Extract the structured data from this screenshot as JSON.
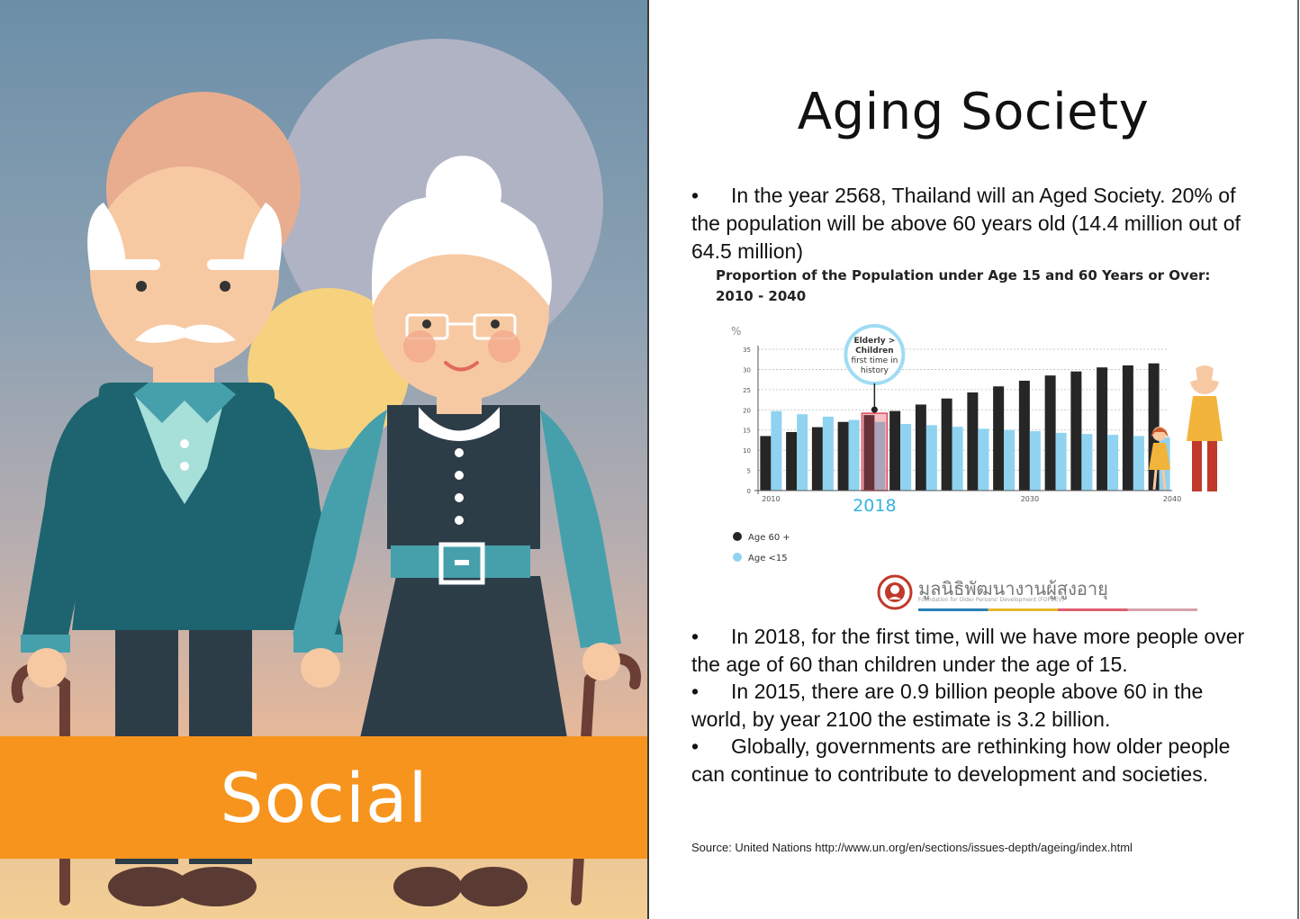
{
  "left_panel": {
    "label": "Social",
    "colors": {
      "band": "#f7941d",
      "sky_top": "#6b8fa8",
      "sky_bottom": "#f2cf94"
    }
  },
  "right_panel": {
    "title": "Aging Society",
    "bullets": [
      {
        "symbol": "•",
        "text": "In the year 2568, Thailand will an Aged Society. 20% of the population will be above 60 years old (14.4 million out of 64.5 million)"
      },
      {
        "symbol": "•",
        "text": "In 2018, for the first time, will we have more people over the age of 60 than children under the age of 15."
      },
      {
        "symbol": "•",
        "text": "In 2015, there are 0.9 billion people above 60 in the world, by year 2100 the estimate is 3.2 billion."
      },
      {
        "symbol": "•",
        "text": "Globally, governments are rethinking how older people can continue to contribute to development and societies."
      }
    ],
    "chart_title_line1": "Proportion of the Population under Age 15 and 60 Years or Over:",
    "chart_title_line2": "2010 - 2040",
    "logo": {
      "text": "มูลนิธิพัฒนางานผู้สูงอายุ",
      "subtext": "Foundation for Older Persons' Development (FOPDEV)"
    },
    "source": "Source: United Nations http://www.un.org/en/sections/issues-depth/ageing/index.html"
  },
  "chart_data": {
    "type": "bar",
    "title": "Proportion of the Population under Age 15 and 60 Years or Over: 2010 - 2040",
    "ylabel": "%",
    "ylim": [
      0,
      35
    ],
    "yticks": [
      0,
      5,
      10,
      15,
      20,
      25,
      30,
      35
    ],
    "xticks": [
      "2010",
      "2030",
      "2040"
    ],
    "highlight_label": "2018",
    "callout": "Elderly > Children first time in history",
    "grid": true,
    "legend_position": "bottom-left",
    "colors": {
      "Age 60 +": "#262626",
      "Age <15": "#8fd3f0",
      "highlight": "#e04a5a"
    },
    "categories": [
      "2010",
      "2012",
      "2014",
      "2016",
      "2018",
      "2020",
      "2022",
      "2024",
      "2026",
      "2028",
      "2030",
      "2032",
      "2034",
      "2036",
      "2038",
      "2040"
    ],
    "series": [
      {
        "name": "Age 60 +",
        "values": [
          13.5,
          14.5,
          15.7,
          17.0,
          18.7,
          19.7,
          21.3,
          22.8,
          24.3,
          25.8,
          27.2,
          28.5,
          29.5,
          30.5,
          31.0,
          31.5
        ]
      },
      {
        "name": "Age <15",
        "values": [
          19.7,
          18.9,
          18.3,
          17.5,
          17.0,
          16.5,
          16.2,
          15.8,
          15.3,
          15.0,
          14.7,
          14.3,
          14.0,
          13.8,
          13.5,
          13.2
        ]
      }
    ]
  }
}
